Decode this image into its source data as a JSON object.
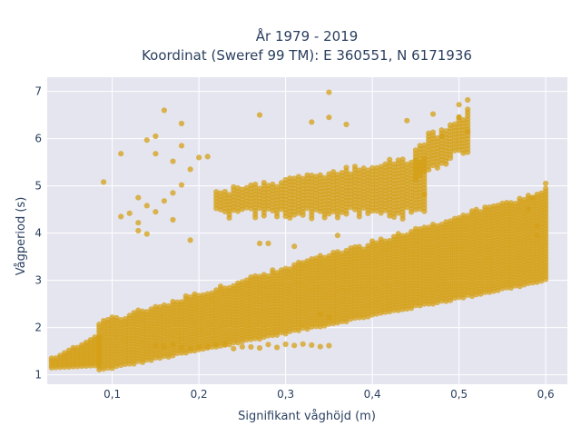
{
  "colors": {
    "plot_bg": "#e5e5f0",
    "grid": "#ffffff",
    "marker": "#d4a017",
    "text": "#2a3f5f"
  },
  "chart_data": {
    "type": "scatter",
    "title": [
      "År 1979 - 2019",
      "Koordinat (Sweref 99 TM): E 360551, N 6171936"
    ],
    "xlabel": "Signifikant våghöjd (m)",
    "ylabel": "Vågperiod (s)",
    "xlim": [
      0.025,
      0.625
    ],
    "ylim": [
      0.8,
      7.3
    ],
    "xticks": [
      0.1,
      0.2,
      0.3,
      0.4,
      0.5,
      0.6
    ],
    "xtick_labels": [
      "0,1",
      "0,2",
      "0,3",
      "0,4",
      "0,5",
      "0,6"
    ],
    "yticks": [
      1,
      2,
      3,
      4,
      5,
      6,
      7
    ],
    "ytick_labels": [
      "1",
      "2",
      "3",
      "4",
      "5",
      "6",
      "7"
    ],
    "grid": true,
    "marker_opacity": 0.75,
    "series": [
      {
        "description_clusters": [
          {
            "x_from": 0.03,
            "x_to": 0.085,
            "y_min": 1.15,
            "y_max": 1.9
          },
          {
            "x_from": 0.085,
            "x_to": 0.6,
            "lower_start": 1.1,
            "lower_end": 3.0,
            "upper_start": 2.1,
            "upper_end": 4.9
          },
          {
            "x_from": 0.15,
            "x_to": 0.35,
            "band_center": 1.6,
            "band_height": 0.1
          },
          {
            "x_from": 0.22,
            "x_to": 0.46,
            "y_min": 4.2,
            "y_max": 5.7
          },
          {
            "x_from": 0.45,
            "x_to": 0.51,
            "y_min": 5.0,
            "y_max": 6.8
          }
        ],
        "values": [
          {
            "x": 0.09,
            "y": 5.08
          },
          {
            "x": 0.11,
            "y": 5.68
          },
          {
            "x": 0.11,
            "y": 4.35
          },
          {
            "x": 0.12,
            "y": 4.42
          },
          {
            "x": 0.13,
            "y": 4.75
          },
          {
            "x": 0.13,
            "y": 4.22
          },
          {
            "x": 0.13,
            "y": 4.05
          },
          {
            "x": 0.14,
            "y": 5.97
          },
          {
            "x": 0.14,
            "y": 4.58
          },
          {
            "x": 0.14,
            "y": 3.98
          },
          {
            "x": 0.15,
            "y": 6.05
          },
          {
            "x": 0.15,
            "y": 5.68
          },
          {
            "x": 0.15,
            "y": 4.45
          },
          {
            "x": 0.16,
            "y": 6.6
          },
          {
            "x": 0.16,
            "y": 4.68
          },
          {
            "x": 0.17,
            "y": 5.52
          },
          {
            "x": 0.17,
            "y": 4.85
          },
          {
            "x": 0.17,
            "y": 4.28
          },
          {
            "x": 0.18,
            "y": 6.32
          },
          {
            "x": 0.18,
            "y": 5.85
          },
          {
            "x": 0.18,
            "y": 5.02
          },
          {
            "x": 0.19,
            "y": 5.35
          },
          {
            "x": 0.19,
            "y": 3.85
          },
          {
            "x": 0.2,
            "y": 5.6
          },
          {
            "x": 0.21,
            "y": 5.62
          },
          {
            "x": 0.27,
            "y": 6.5
          },
          {
            "x": 0.35,
            "y": 6.98
          },
          {
            "x": 0.35,
            "y": 6.45
          },
          {
            "x": 0.33,
            "y": 6.35
          },
          {
            "x": 0.37,
            "y": 6.3
          },
          {
            "x": 0.44,
            "y": 6.38
          },
          {
            "x": 0.47,
            "y": 6.52
          },
          {
            "x": 0.48,
            "y": 6.05
          },
          {
            "x": 0.5,
            "y": 6.72
          },
          {
            "x": 0.5,
            "y": 6.45
          },
          {
            "x": 0.51,
            "y": 6.82
          },
          {
            "x": 0.51,
            "y": 6.15
          },
          {
            "x": 0.46,
            "y": 4.82
          },
          {
            "x": 0.36,
            "y": 3.95
          },
          {
            "x": 0.28,
            "y": 3.78
          },
          {
            "x": 0.27,
            "y": 3.78
          },
          {
            "x": 0.31,
            "y": 3.72
          },
          {
            "x": 0.34,
            "y": 2.28
          },
          {
            "x": 0.35,
            "y": 2.22
          },
          {
            "x": 0.6,
            "y": 5.05
          },
          {
            "x": 0.59,
            "y": 3.95
          },
          {
            "x": 0.59,
            "y": 4.15
          },
          {
            "x": 0.58,
            "y": 4.5
          },
          {
            "x": 0.585,
            "y": 4.75
          }
        ]
      }
    ]
  }
}
